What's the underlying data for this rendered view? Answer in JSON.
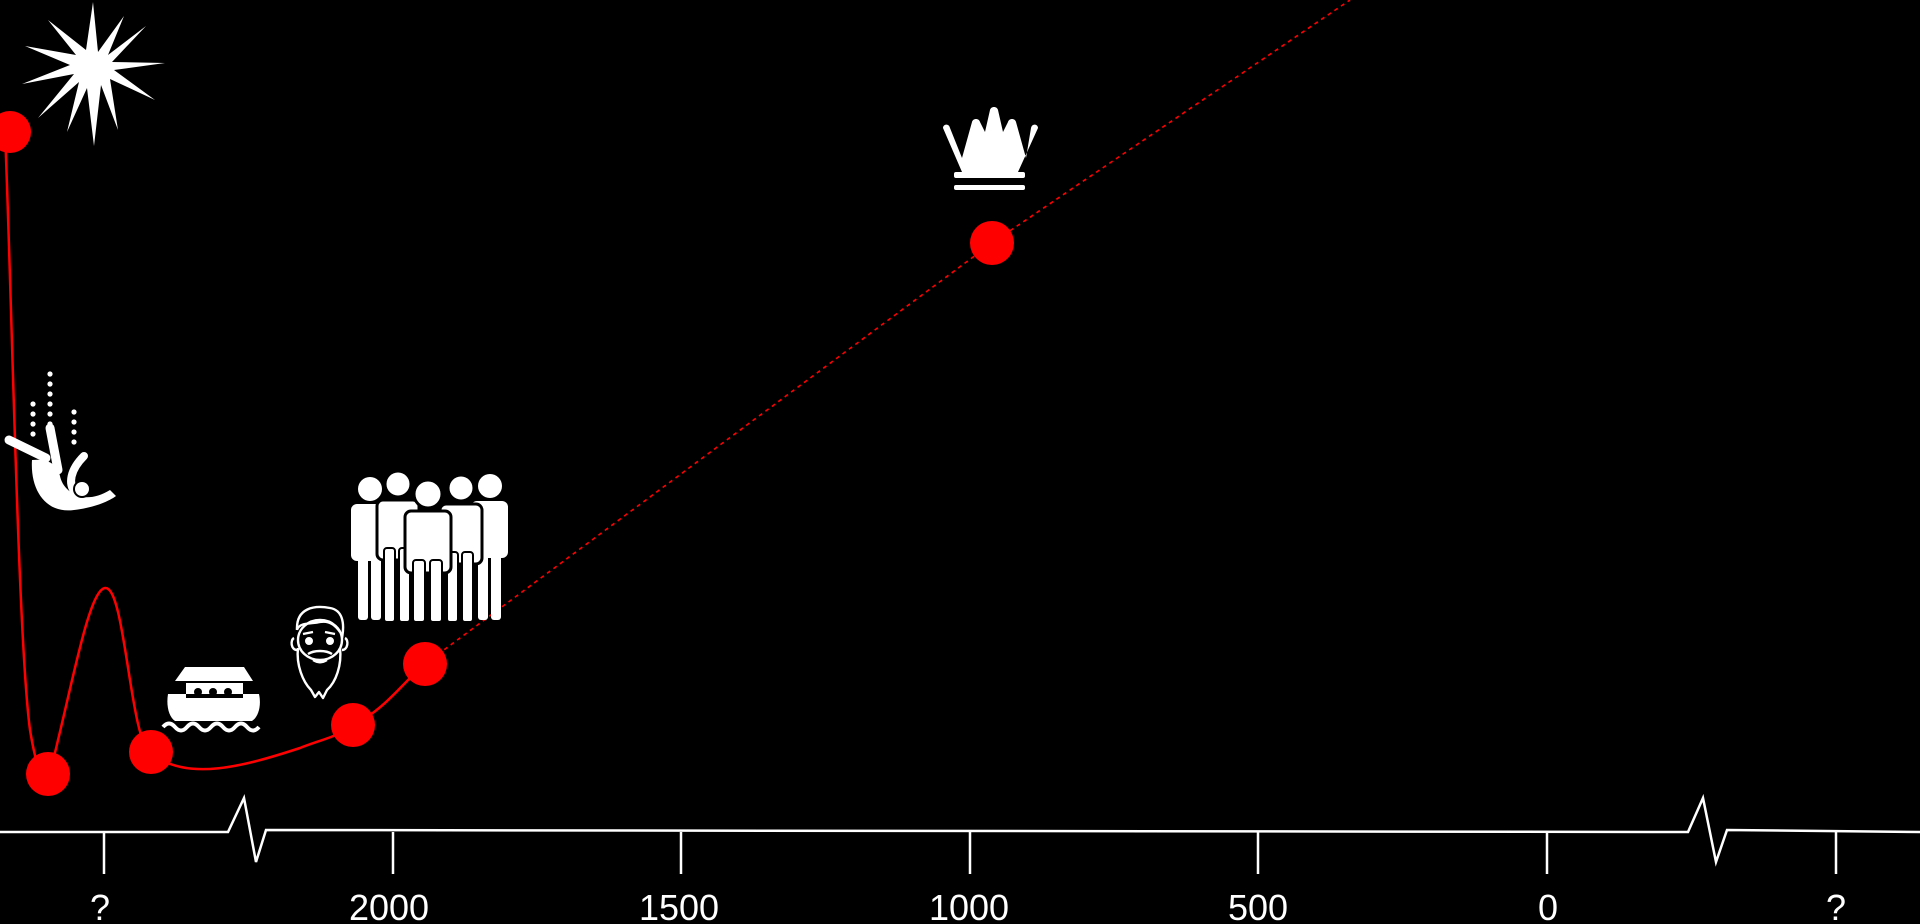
{
  "timeline": {
    "axis_color": "#ffffff",
    "ticks": [
      {
        "label": "?",
        "icon": null
      },
      {
        "label": "2000"
      },
      {
        "label": "1500"
      },
      {
        "label": "1000"
      },
      {
        "label": "500"
      },
      {
        "label": "0"
      },
      {
        "label": "?"
      }
    ],
    "axis_breaks": 2
  },
  "curve": {
    "color": "#ff0000",
    "solid_segment": "creation-to-patriarchs",
    "dashed_segment": "patriarchs-to-kingdom-and-beyond"
  },
  "events": [
    {
      "id": "creation",
      "icon": "starburst-icon"
    },
    {
      "id": "fall",
      "icon": "falling-figure-icon"
    },
    {
      "id": "flood",
      "icon": "ark-icon"
    },
    {
      "id": "patriarch",
      "icon": "bearded-man-icon"
    },
    {
      "id": "nation",
      "icon": "group-of-people-icon"
    },
    {
      "id": "kingdom",
      "icon": "crown-icon"
    }
  ],
  "colors": {
    "background": "#000000",
    "marker": "#ff0000",
    "icon": "#ffffff"
  }
}
